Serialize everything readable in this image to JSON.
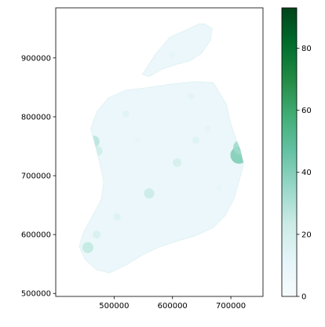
{
  "chart_data": {
    "type": "heatmap",
    "title": "",
    "xlabel": "",
    "ylabel": "",
    "xlim": [
      400000,
      755000
    ],
    "ylim": [
      495000,
      985000
    ],
    "x_ticks": [
      "500000",
      "600000",
      "700000"
    ],
    "x_tick_values": [
      500000,
      600000,
      700000
    ],
    "y_ticks": [
      "500000",
      "600000",
      "700000",
      "800000",
      "900000"
    ],
    "y_tick_values": [
      500000,
      600000,
      700000,
      800000,
      900000
    ],
    "colorbar": {
      "min": 0,
      "max": 93,
      "ticks": [
        "0",
        "20",
        "40",
        "60",
        "80"
      ],
      "tick_values": [
        0,
        20,
        40,
        60,
        80
      ],
      "colormap": [
        "#f7fcfd",
        "#e5f5f9",
        "#ccece6",
        "#99d8c9",
        "#66c2a4",
        "#41ae76",
        "#238b45",
        "#006d2c",
        "#00441b"
      ]
    },
    "grid": false,
    "region_outline": [
      [
        655000,
        958000
      ],
      [
        668000,
        950000
      ],
      [
        665000,
        930000
      ],
      [
        650000,
        908000
      ],
      [
        630000,
        895000
      ],
      [
        604000,
        888000
      ],
      [
        580000,
        880000
      ],
      [
        560000,
        868000
      ],
      [
        548000,
        872000
      ],
      [
        570000,
        905000
      ],
      [
        595000,
        935000
      ],
      [
        625000,
        948000
      ],
      [
        645000,
        958000
      ],
      [
        670000,
        858000
      ],
      [
        692000,
        822000
      ],
      [
        700000,
        788000
      ],
      [
        708000,
        765000
      ],
      [
        716000,
        745000
      ],
      [
        722000,
        720000
      ],
      [
        714000,
        690000
      ],
      [
        705000,
        660000
      ],
      [
        690000,
        632000
      ],
      [
        670000,
        612000
      ],
      [
        640000,
        598000
      ],
      [
        605000,
        588000
      ],
      [
        575000,
        578000
      ],
      [
        548000,
        565000
      ],
      [
        520000,
        548000
      ],
      [
        492000,
        535000
      ],
      [
        470000,
        540000
      ],
      [
        450000,
        558000
      ],
      [
        440000,
        580000
      ],
      [
        448000,
        605000
      ],
      [
        462000,
        630000
      ],
      [
        478000,
        660000
      ],
      [
        482000,
        690000
      ],
      [
        475000,
        722000
      ],
      [
        468000,
        750000
      ],
      [
        460000,
        780000
      ],
      [
        470000,
        808000
      ],
      [
        490000,
        832000
      ],
      [
        520000,
        845000
      ],
      [
        560000,
        850000
      ],
      [
        600000,
        856000
      ],
      [
        640000,
        860000
      ]
    ],
    "hotspots": [
      {
        "x": 714000,
        "y": 735000,
        "value": 42
      },
      {
        "x": 716000,
        "y": 748000,
        "value": 34
      },
      {
        "x": 465000,
        "y": 758000,
        "value": 28
      },
      {
        "x": 472000,
        "y": 742000,
        "value": 22
      },
      {
        "x": 560000,
        "y": 670000,
        "value": 24
      },
      {
        "x": 608000,
        "y": 722000,
        "value": 20
      },
      {
        "x": 455000,
        "y": 578000,
        "value": 26
      },
      {
        "x": 470000,
        "y": 600000,
        "value": 18
      },
      {
        "x": 505000,
        "y": 630000,
        "value": 16
      },
      {
        "x": 585000,
        "y": 575000,
        "value": 15
      },
      {
        "x": 520000,
        "y": 805000,
        "value": 15
      },
      {
        "x": 632000,
        "y": 835000,
        "value": 14
      },
      {
        "x": 660000,
        "y": 780000,
        "value": 13
      },
      {
        "x": 640000,
        "y": 760000,
        "value": 16
      },
      {
        "x": 680000,
        "y": 680000,
        "value": 12
      },
      {
        "x": 600000,
        "y": 905000,
        "value": 12
      },
      {
        "x": 540000,
        "y": 760000,
        "value": 11
      },
      {
        "x": 690000,
        "y": 620000,
        "value": 13
      }
    ]
  }
}
